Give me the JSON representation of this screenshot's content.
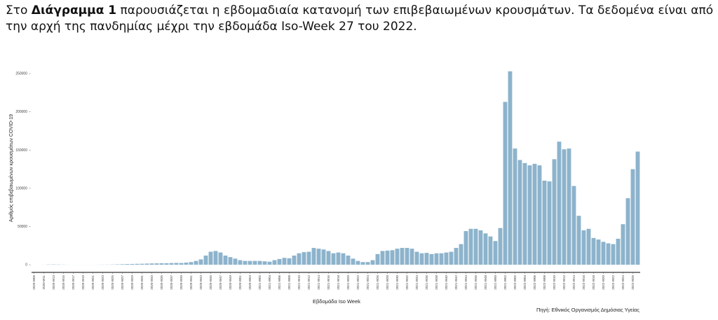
{
  "paragraph": {
    "parts": [
      "Στο ",
      "Διάγραμμα 1",
      " παρουσιάζεται η εβδομαδιαία κατανομή των επιβεβαιωμένων κρουσμάτων. Τα δεδομένα είναι από την αρχή της πανδημίας μέχρι την εβδομάδα Iso-Week 27 του 2022."
    ]
  },
  "chart_data": {
    "type": "bar",
    "x_label": "Εβδομάδα Iso Week",
    "y_label": "Αριθμός επιβεβαιωμένων κρουσμάτων COVID-19",
    "source": "Πηγή: Εθνικός Οργανισμός Δημόσιας Υγείας",
    "color": "#8db3cc",
    "ylim": [
      -10000,
      262000
    ],
    "yticks": [
      0,
      50000,
      100000,
      150000,
      200000,
      250000
    ],
    "categories": [
      "2020-W09",
      null,
      "2020-W11",
      null,
      "2020-W13",
      null,
      "2020-W15",
      null,
      "2020-W17",
      null,
      "2020-W19",
      null,
      "2020-W21",
      null,
      "2020-W23",
      null,
      "2020-W25",
      null,
      "2020-W27",
      null,
      "2020-W29",
      null,
      "2020-W31",
      null,
      "2020-W33",
      null,
      "2020-W35",
      null,
      "2020-W37",
      null,
      "2020-W39",
      null,
      "2020-W41",
      null,
      "2020-W43",
      null,
      "2020-W45",
      null,
      "2020-W47",
      null,
      "2020-W49",
      null,
      "2020-W51",
      null,
      "2020-W53",
      null,
      "2021-W02",
      null,
      "2021-W04",
      null,
      "2021-W06",
      null,
      "2021-W08",
      null,
      "2021-W10",
      null,
      "2021-W12",
      null,
      "2021-W14",
      null,
      "2021-W16",
      null,
      "2021-W18",
      null,
      "2021-W20",
      null,
      "2021-W22",
      null,
      "2021-W24",
      null,
      "2021-W26",
      null,
      "2021-W28",
      null,
      "2021-W30",
      null,
      "2021-W32",
      null,
      "2021-W34",
      null,
      "2021-W36",
      null,
      "2021-W38",
      null,
      "2021-W40",
      null,
      "2021-W42",
      null,
      "2021-W44",
      null,
      "2021-W46",
      null,
      "2021-W48",
      null,
      "2021-W50",
      null,
      "2021-W52",
      null,
      "2022-W02",
      null,
      "2022-W04",
      null,
      "2022-W06",
      null,
      "2022-W08",
      null,
      "2022-W10",
      null,
      "2022-W12",
      null,
      "2022-W14",
      null,
      "2022-W16",
      null,
      "2022-W18",
      null,
      "2022-W20",
      null,
      "2022-W22",
      null,
      "2022-W24",
      null,
      "2022-W26",
      null
    ],
    "values": [
      0,
      0,
      100,
      300,
      400,
      300,
      200,
      100,
      50,
      50,
      50,
      50,
      50,
      100,
      150,
      200,
      300,
      500,
      700,
      900,
      1000,
      1200,
      1300,
      1500,
      1700,
      1800,
      1900,
      2000,
      2200,
      2400,
      2300,
      2800,
      3500,
      5000,
      7000,
      12000,
      17000,
      18000,
      16000,
      12000,
      10000,
      8000,
      6000,
      5000,
      5000,
      5000,
      5000,
      4500,
      4000,
      6000,
      7500,
      9000,
      8500,
      12000,
      15000,
      16500,
      17000,
      22000,
      21000,
      20000,
      18000,
      15000,
      16000,
      15000,
      12000,
      8000,
      5000,
      3500,
      3500,
      6000,
      14000,
      18000,
      18500,
      19000,
      21000,
      22000,
      22000,
      21000,
      17000,
      15000,
      15500,
      14000,
      15000,
      15000,
      16000,
      17000,
      22000,
      27000,
      44000,
      47000,
      47000,
      45000,
      41000,
      37000,
      31000,
      48000,
      213000,
      253000,
      152000,
      137000,
      133000,
      130000,
      132000,
      130000,
      110000,
      109000,
      138000,
      161000,
      151000,
      152000,
      103000,
      64000,
      45000,
      47000,
      35000,
      33000,
      30000,
      28000,
      27000,
      34000,
      53000,
      87000,
      125000,
      148000
    ]
  }
}
